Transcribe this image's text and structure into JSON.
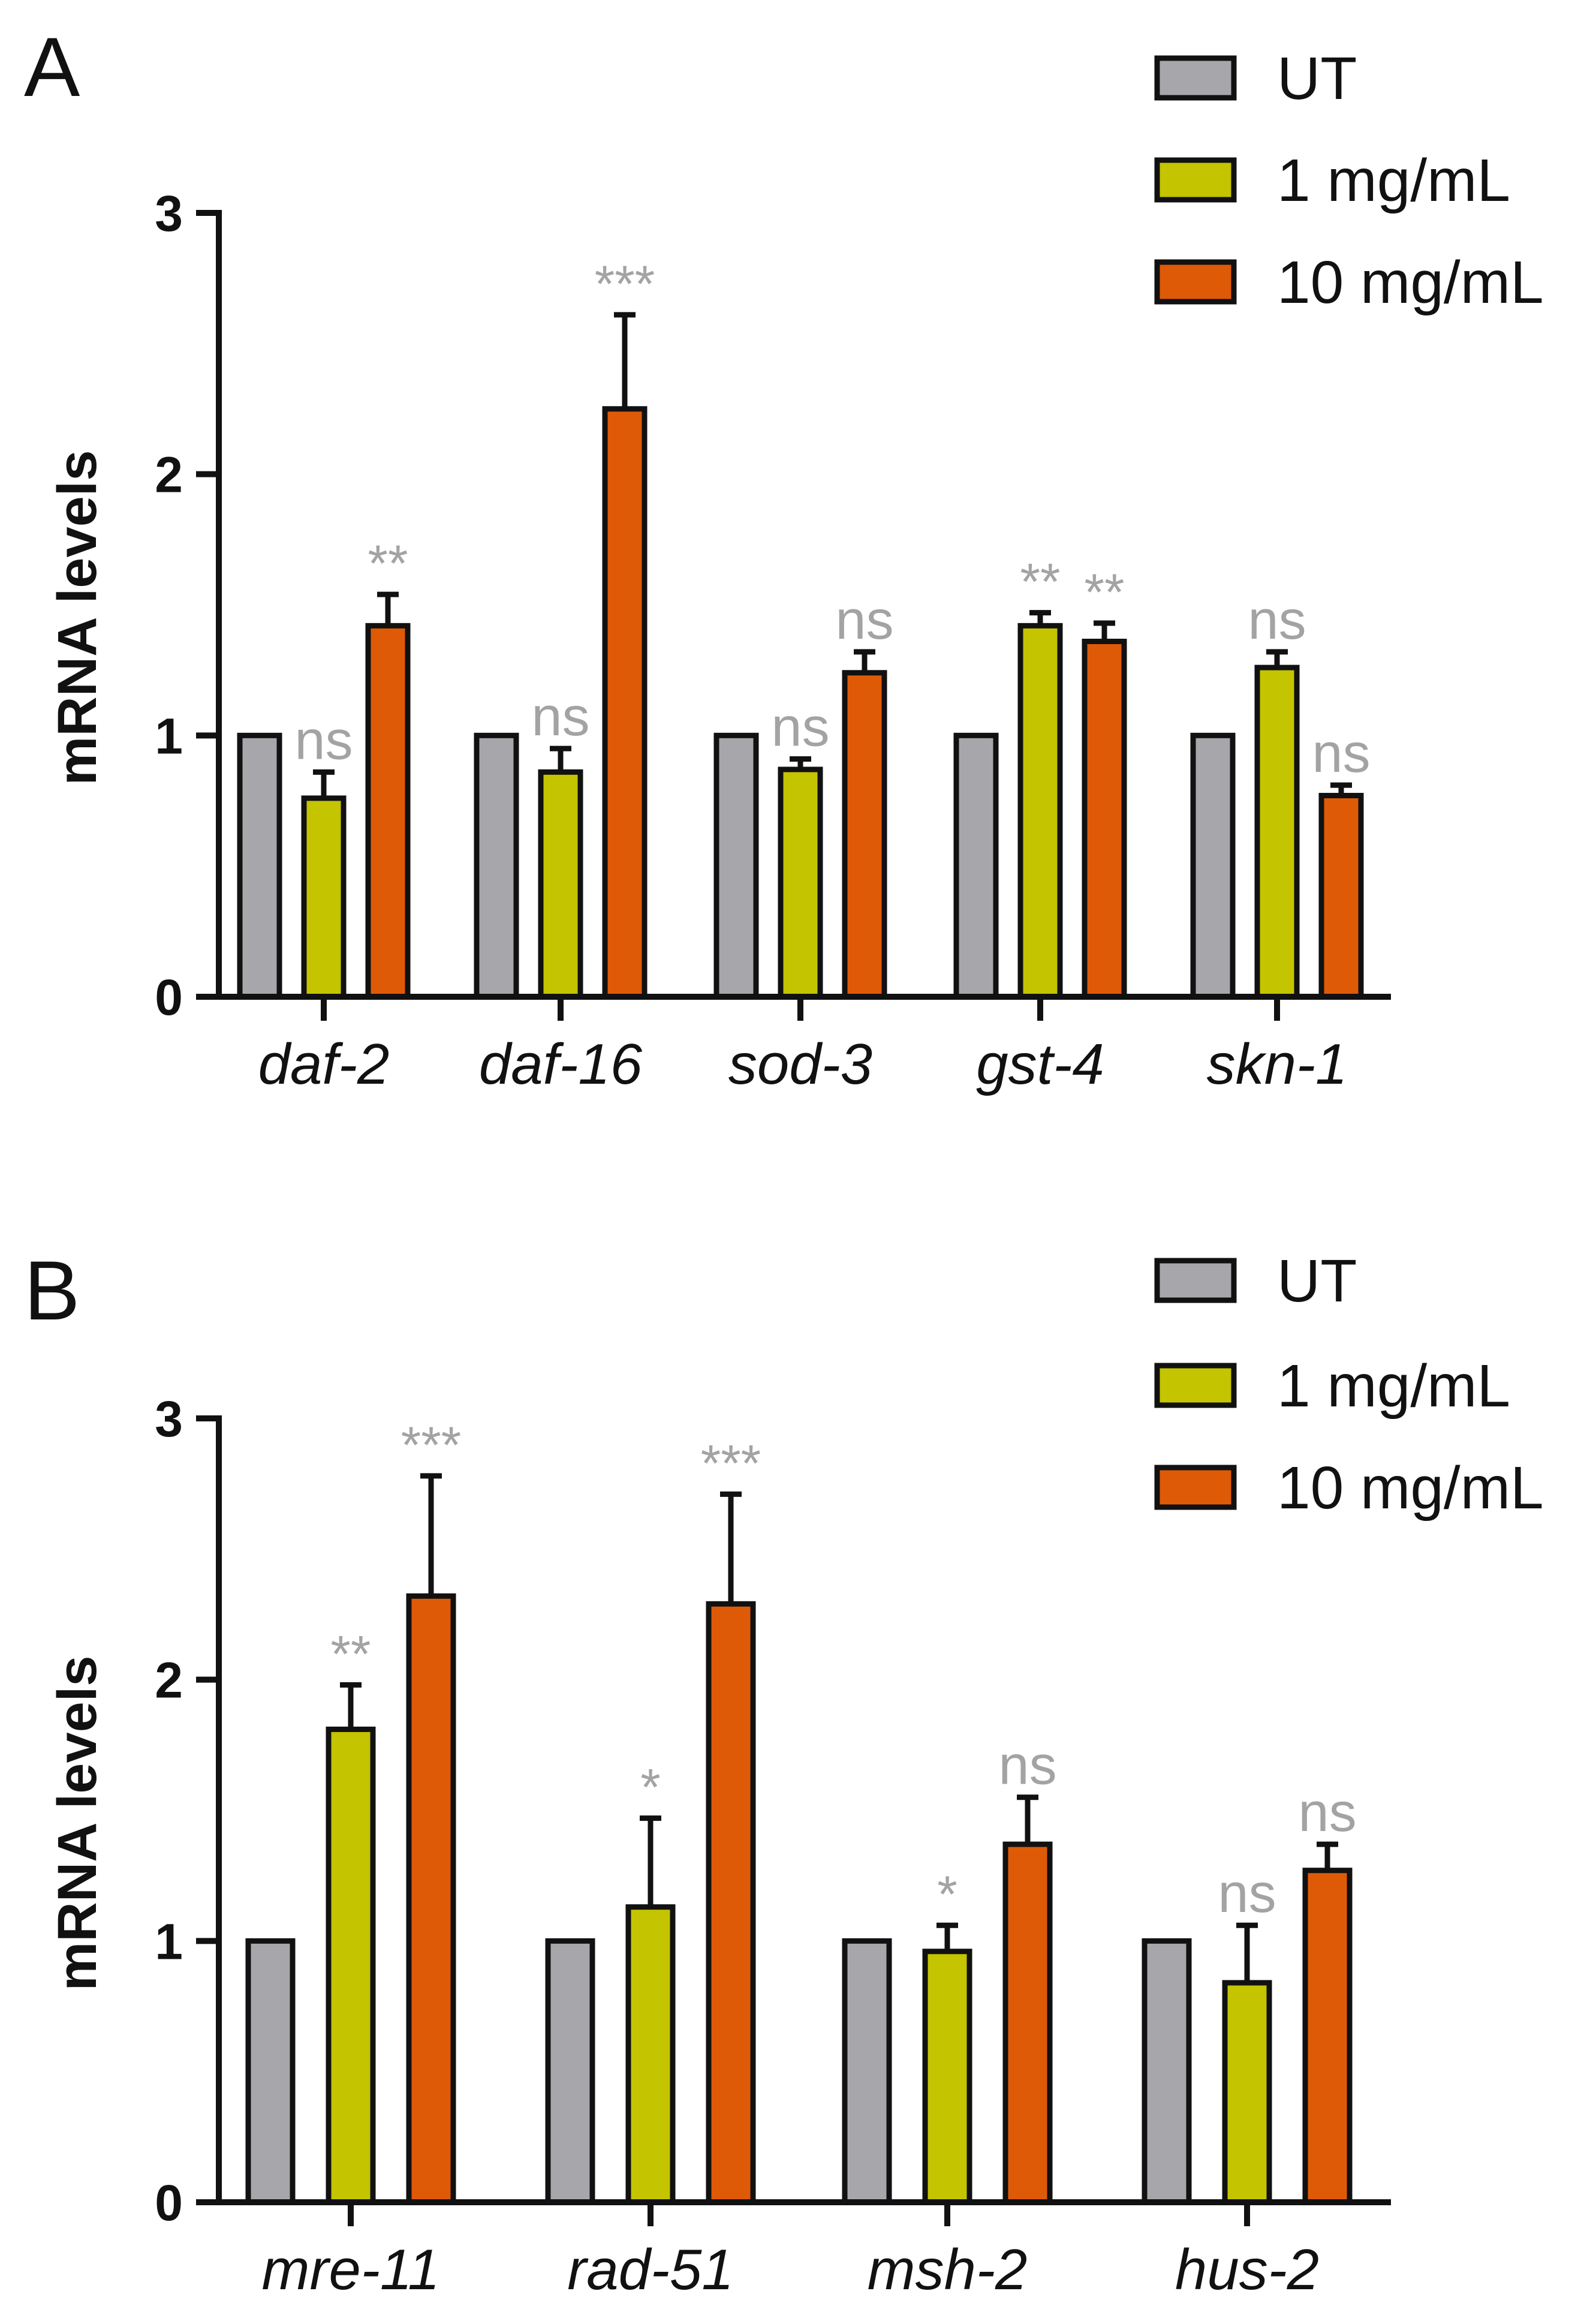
{
  "colors": {
    "ut": "#a7a7ab",
    "low": "#c4c400",
    "high": "#df5a07",
    "axis": "#111111",
    "sig": "#a3a3a3"
  },
  "legend_items": [
    "UT",
    "1 mg/mL",
    "10 mg/mL"
  ],
  "chart_data": [
    {
      "panel": "A",
      "type": "bar",
      "title": "",
      "xlabel": "",
      "ylabel": "mRNA levels",
      "ylim": [
        0,
        3
      ],
      "yticks": [
        "0",
        "1",
        "2",
        "3"
      ],
      "categories": [
        "daf-2",
        "daf-16",
        "sod-3",
        "gst-4",
        "skn-1"
      ],
      "series": [
        {
          "name": "UT",
          "values": [
            1.0,
            1.0,
            1.0,
            1.0,
            1.0
          ],
          "errors": [
            0,
            0,
            0,
            0,
            0
          ],
          "significance": [
            "",
            "",
            "",
            "",
            ""
          ]
        },
        {
          "name": "1 mg/mL",
          "values": [
            0.76,
            0.86,
            0.87,
            1.42,
            1.26
          ],
          "errors": [
            0.1,
            0.09,
            0.04,
            0.05,
            0.06
          ],
          "significance": [
            "ns",
            "ns",
            "ns",
            "**",
            "ns"
          ]
        },
        {
          "name": "10 mg/mL",
          "values": [
            1.42,
            2.25,
            1.24,
            1.36,
            0.77
          ],
          "errors": [
            0.12,
            0.36,
            0.08,
            0.07,
            0.04
          ],
          "significance": [
            "**",
            "***",
            "ns",
            "**",
            "ns"
          ]
        }
      ],
      "legend": "top-right"
    },
    {
      "panel": "B",
      "type": "bar",
      "title": "",
      "xlabel": "",
      "ylabel": "mRNA levels",
      "ylim": [
        0,
        3
      ],
      "yticks": [
        "0",
        "1",
        "2",
        "3"
      ],
      "categories": [
        "mre-11",
        "rad-51",
        "msh-2",
        "hus-2"
      ],
      "series": [
        {
          "name": "UT",
          "values": [
            1.0,
            1.0,
            1.0,
            1.0
          ],
          "errors": [
            0,
            0,
            0,
            0
          ],
          "significance": [
            "",
            "",
            "",
            ""
          ]
        },
        {
          "name": "1 mg/mL",
          "values": [
            1.81,
            1.13,
            0.96,
            0.84
          ],
          "errors": [
            0.17,
            0.34,
            0.1,
            0.22
          ],
          "significance": [
            "**",
            "*",
            "*",
            "ns"
          ]
        },
        {
          "name": "10 mg/mL",
          "values": [
            2.32,
            2.29,
            1.37,
            1.27
          ],
          "errors": [
            0.46,
            0.42,
            0.18,
            0.1
          ],
          "significance": [
            "***",
            "***",
            "ns",
            "ns"
          ]
        }
      ],
      "legend": "top-right"
    }
  ]
}
